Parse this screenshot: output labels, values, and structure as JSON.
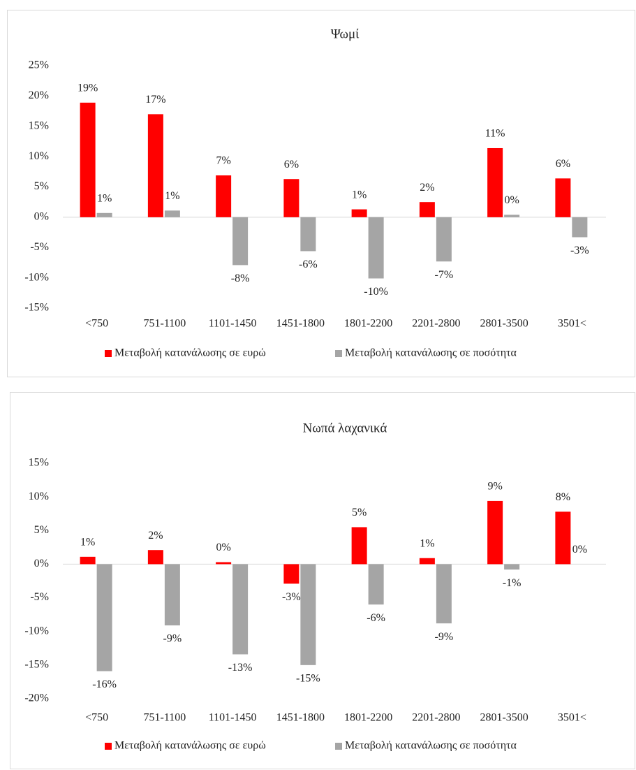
{
  "chart_data": [
    {
      "type": "bar",
      "title": "Ψωμί",
      "categories": [
        "<750",
        "751-1100",
        "1101-1450",
        "1451-1800",
        "1801-2200",
        "2201-2800",
        "2801-3500",
        "3501<"
      ],
      "series": [
        {
          "name": "Μεταβολή κατανάλωσης σε ευρώ",
          "color": "#ff0000",
          "values": [
            18.9,
            17.0,
            6.9,
            6.3,
            1.3,
            2.5,
            11.4,
            6.4
          ],
          "value_labels": [
            "19%",
            "17%",
            "7%",
            "6%",
            "1%",
            "2%",
            "11%",
            "6%"
          ]
        },
        {
          "name": "Μεταβολή κατανάλωσης σε ποσότητα",
          "color": "#a5a5a5",
          "values": [
            0.7,
            1.1,
            -7.9,
            -5.6,
            -10.1,
            -7.3,
            0.4,
            -3.3
          ],
          "value_labels": [
            "1%",
            "1%",
            "-8%",
            "-6%",
            "-10%",
            "-7%",
            "0%",
            "-3%"
          ]
        }
      ],
      "ylim": [
        -15,
        25
      ],
      "yticks": [
        {
          "value": -15,
          "label": "-15%"
        },
        {
          "value": -10,
          "label": "-10%"
        },
        {
          "value": -5,
          "label": "-5%"
        },
        {
          "value": 0,
          "label": "0%"
        },
        {
          "value": 5,
          "label": "5%"
        },
        {
          "value": 10,
          "label": "10%"
        },
        {
          "value": 15,
          "label": "15%"
        },
        {
          "value": 20,
          "label": "20%"
        },
        {
          "value": 25,
          "label": "25%"
        }
      ],
      "legend": "bottom"
    },
    {
      "type": "bar",
      "title": "Νωπά λαχανικά",
      "categories": [
        "<750",
        "751-1100",
        "1101-1450",
        "1451-1800",
        "1801-2200",
        "2201-2800",
        "2801-3500",
        "3501<"
      ],
      "series": [
        {
          "name": "Μεταβολή κατανάλωσης σε ευρώ",
          "color": "#ff0000",
          "values": [
            1.1,
            2.1,
            0.3,
            -2.9,
            5.5,
            0.9,
            9.4,
            7.8
          ],
          "value_labels": [
            "1%",
            "2%",
            "0%",
            "-3%",
            "5%",
            "1%",
            "9%",
            "8%"
          ]
        },
        {
          "name": "Μεταβολή κατανάλωσης σε ποσότητα",
          "color": "#a5a5a5",
          "values": [
            -15.9,
            -9.1,
            -13.4,
            -15.0,
            -6.0,
            -8.8,
            -0.8,
            0
          ],
          "value_labels": [
            "-16%",
            "-9%",
            "-13%",
            "-15%",
            "-6%",
            "-9%",
            "-1%",
            "0%"
          ]
        }
      ],
      "ylim": [
        -20,
        15
      ],
      "yticks": [
        {
          "value": -20,
          "label": "-20%"
        },
        {
          "value": -15,
          "label": "-15%"
        },
        {
          "value": -10,
          "label": "-10%"
        },
        {
          "value": -5,
          "label": "-5%"
        },
        {
          "value": 0,
          "label": "0%"
        },
        {
          "value": 5,
          "label": "5%"
        },
        {
          "value": 10,
          "label": "10%"
        },
        {
          "value": 15,
          "label": "15%"
        }
      ],
      "legend": "bottom"
    }
  ]
}
